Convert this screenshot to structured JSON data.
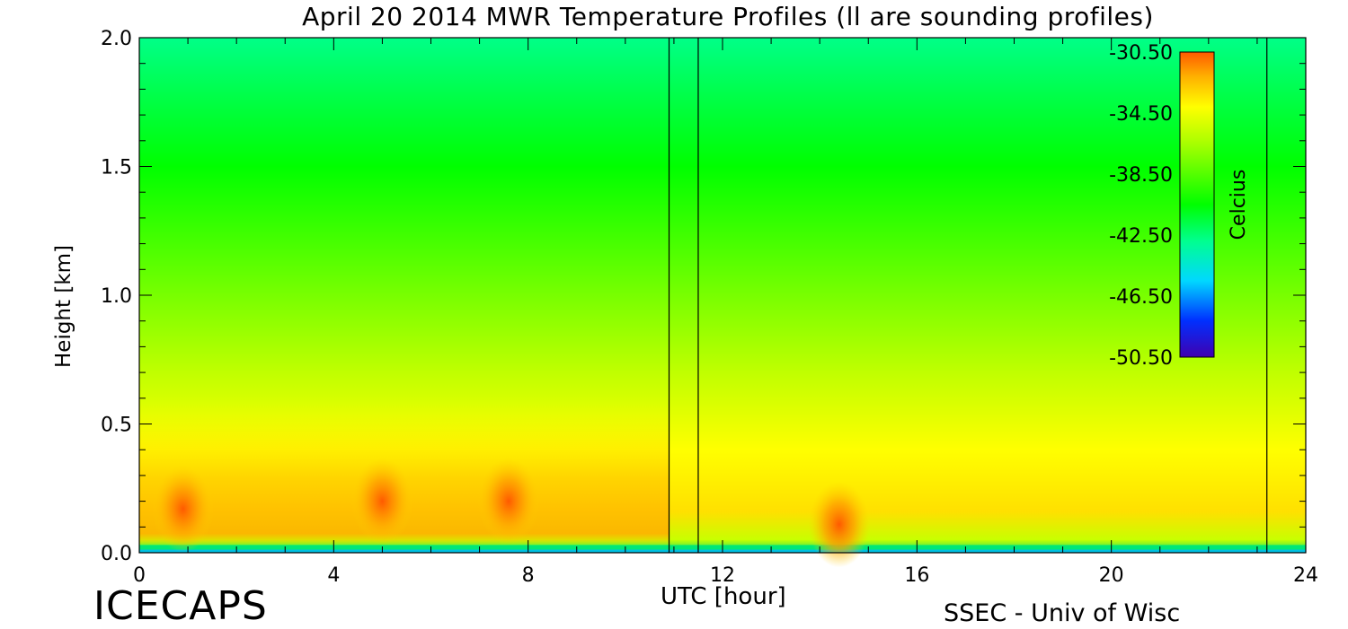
{
  "chart_data": {
    "type": "heatmap",
    "title": "April 20 2014 MWR Temperature Profiles (ll are sounding profiles)",
    "xlabel": "UTC [hour]",
    "ylabel": "Height [km]",
    "xlim": [
      0,
      24
    ],
    "ylim": [
      0,
      2.0
    ],
    "x_ticks": [
      "0",
      "4",
      "8",
      "12",
      "16",
      "20",
      "24"
    ],
    "y_ticks": [
      "0.0",
      "0.5",
      "1.0",
      "1.5",
      "2.0"
    ],
    "sounding_times_utc": [
      10.9,
      11.5,
      23.2
    ],
    "colorbar": {
      "label": "Celcius",
      "range": [
        -50.5,
        -30.5
      ],
      "ticks": [
        "-30.50",
        "-34.50",
        "-38.50",
        "-42.50",
        "-46.50",
        "-50.50"
      ],
      "colors": [
        "#4000b0",
        "#0030ff",
        "#00ffff",
        "#00ff60",
        "#00ff00",
        "#a0ff00",
        "#ffff00",
        "#ffb000",
        "#ff6000"
      ]
    },
    "warm_cores": [
      {
        "time": 0.9,
        "height_km": 0.17,
        "temp_c": -30.5
      },
      {
        "time": 5.0,
        "height_km": 0.2,
        "temp_c": -31.5
      },
      {
        "time": 7.6,
        "height_km": 0.2,
        "temp_c": -31.0
      },
      {
        "time": 14.4,
        "height_km": 0.11,
        "temp_c": -30.5
      }
    ]
  },
  "footer": {
    "left": "ICECAPS",
    "right": "SSEC - Univ of Wisc"
  }
}
